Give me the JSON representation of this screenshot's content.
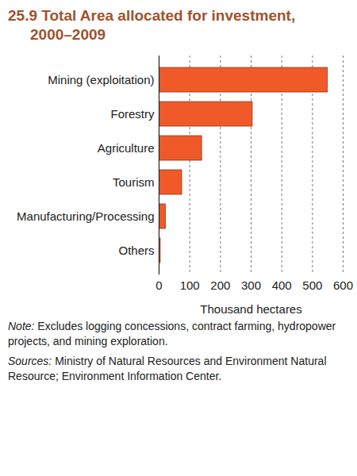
{
  "chart_data": {
    "type": "bar",
    "orientation": "horizontal",
    "title": "25.9 Total Area allocated for investment,",
    "subtitle": "2000–2009",
    "categories": [
      "Mining (exploitation)",
      "Forestry",
      "Agriculture",
      "Tourism",
      "Manufacturing/Processing",
      "Others"
    ],
    "values": [
      550,
      305,
      140,
      75,
      22,
      5
    ],
    "color": "#f05a28",
    "xlim": [
      0,
      600
    ],
    "xticks": [
      0,
      100,
      200,
      300,
      400,
      500,
      600
    ],
    "xlabel": "Thousand hectares",
    "grid": true,
    "data_labels": false,
    "notes": [
      {
        "lead": "Note:",
        "text": "Excludes logging concessions, contract farming, hydropower projects, and mining exploration."
      },
      {
        "lead": "Sources:",
        "text": "Ministry of Natural Resources and Environment Natural Resource; Environment Information Center."
      }
    ]
  }
}
